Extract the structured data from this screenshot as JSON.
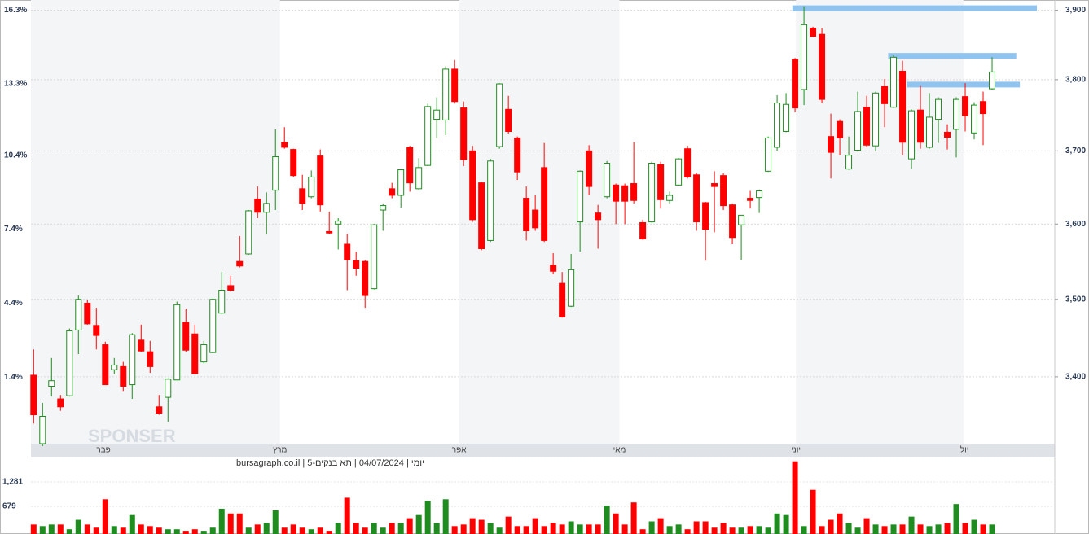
{
  "chart_data": [
    {
      "type": "candlestick",
      "caption": "יומי | 04/07/2024 | תא בנקים-5 | bursagraph.co.il",
      "watermark": "SPONSER",
      "up_color": "#1e8c1e",
      "down_color": "#ff0000",
      "log_scale": true,
      "grid": true,
      "xlim": [
        -0.3,
        114
      ],
      "xticks": [
        {
          "value": 7.8,
          "label": "פבר"
        },
        {
          "value": 27.5,
          "label": "מרץ"
        },
        {
          "value": 47.5,
          "label": "אפר"
        },
        {
          "value": 65.4,
          "label": "מאי"
        },
        {
          "value": 85.1,
          "label": "יוני"
        },
        {
          "value": 103.8,
          "label": "יולי"
        }
      ],
      "ylim": [
        3316,
        3915
      ],
      "yticks": [
        {
          "value": 3400,
          "label": "3,400"
        },
        {
          "value": 3500,
          "label": "3,500"
        },
        {
          "value": 3600,
          "label": "3,600"
        },
        {
          "value": 3700,
          "label": "3,700"
        },
        {
          "value": 3800,
          "label": "3,800"
        },
        {
          "value": 3900,
          "label": "3,900"
        }
      ],
      "y2lim": [
        -1.3,
        16.7
      ],
      "y2ticks": [
        {
          "value": 1.4,
          "label": "1.4%"
        },
        {
          "value": 4.4,
          "label": "4.4%"
        },
        {
          "value": 7.4,
          "label": "7.4%"
        },
        {
          "value": 10.4,
          "label": "10.4%"
        },
        {
          "value": 13.3,
          "label": "13.3%"
        },
        {
          "value": 16.3,
          "label": "16.3%"
        }
      ],
      "levels": [
        {
          "value": 3903,
          "from": 84.7,
          "to": 112
        },
        {
          "value": 3834,
          "from": 95.4,
          "to": 109.7
        },
        {
          "value": 3793,
          "from": 97.5,
          "to": 110.1
        }
      ],
      "level_color": "#90c4f0",
      "open": [
        3402,
        3316,
        3388,
        3372,
        3376,
        3460,
        3495,
        3466,
        3441,
        3409,
        3413,
        3390,
        3447,
        3432,
        3362,
        3374,
        3396,
        3470,
        3455,
        3419,
        3431,
        3482,
        3518,
        3550,
        3560,
        3634,
        3616,
        3646,
        3712,
        3702,
        3648,
        3637,
        3693,
        3590,
        3600,
        3573,
        3551,
        3550,
        3514,
        3619,
        3648,
        3639,
        3705,
        3648,
        3680,
        3744,
        3743,
        3815,
        3760,
        3700,
        3656,
        3578,
        3706,
        3758,
        3718,
        3635,
        3619,
        3677,
        3545,
        3521,
        3491,
        3603,
        3700,
        3615,
        3637,
        3653,
        3652,
        3655,
        3602,
        3603,
        3681,
        3632,
        3653,
        3703,
        3667,
        3629,
        3655,
        3666,
        3626,
        3599,
        3635,
        3636,
        3672,
        3705,
        3727,
        3829,
        3786,
        3874,
        3865,
        3720,
        3741,
        3675,
        3701,
        3761,
        3707,
        3790,
        3761,
        3812,
        3689,
        3757,
        3705,
        3744,
        3726,
        3730,
        3776,
        3725,
        3769,
        3787
      ],
      "high": [
        3435,
        3367,
        3424,
        3377,
        3462,
        3505,
        3499,
        3489,
        3445,
        3424,
        3419,
        3456,
        3467,
        3446,
        3377,
        3398,
        3497,
        3488,
        3467,
        3446,
        3501,
        3536,
        3531,
        3584,
        3619,
        3651,
        3643,
        3730,
        3733,
        3703,
        3667,
        3673,
        3702,
        3617,
        3608,
        3587,
        3563,
        3552,
        3600,
        3628,
        3656,
        3675,
        3707,
        3690,
        3766,
        3775,
        3819,
        3828,
        3769,
        3707,
        3657,
        3689,
        3795,
        3777,
        3720,
        3651,
        3639,
        3711,
        3561,
        3536,
        3560,
        3673,
        3708,
        3626,
        3686,
        3655,
        3655,
        3712,
        3606,
        3685,
        3685,
        3644,
        3690,
        3707,
        3670,
        3630,
        3672,
        3669,
        3628,
        3612,
        3645,
        3647,
        3720,
        3778,
        3781,
        3831,
        3906,
        3876,
        3874,
        3752,
        3744,
        3720,
        3783,
        3777,
        3783,
        3801,
        3835,
        3827,
        3758,
        3791,
        3781,
        3775,
        3737,
        3775,
        3795,
        3768,
        3783,
        3832
      ],
      "low": [
        3341,
        3313,
        3375,
        3357,
        3375,
        3429,
        3467,
        3435,
        3390,
        3403,
        3382,
        3372,
        3432,
        3405,
        3352,
        3343,
        3396,
        3432,
        3403,
        3417,
        3430,
        3481,
        3510,
        3542,
        3559,
        3608,
        3586,
        3619,
        3703,
        3664,
        3619,
        3635,
        3617,
        3586,
        3566,
        3512,
        3531,
        3489,
        3513,
        3591,
        3635,
        3622,
        3644,
        3646,
        3679,
        3718,
        3722,
        3766,
        3679,
        3603,
        3565,
        3576,
        3703,
        3724,
        3660,
        3578,
        3591,
        3576,
        3533,
        3476,
        3490,
        3563,
        3639,
        3567,
        3635,
        3600,
        3600,
        3628,
        3579,
        3602,
        3621,
        3628,
        3652,
        3662,
        3591,
        3551,
        3589,
        3619,
        3573,
        3552,
        3621,
        3615,
        3671,
        3700,
        3726,
        3754,
        3764,
        3861,
        3767,
        3662,
        3694,
        3674,
        3699,
        3705,
        3700,
        3733,
        3760,
        3694,
        3675,
        3703,
        3703,
        3711,
        3702,
        3691,
        3727,
        3716,
        3708,
        3786
      ],
      "close": [
        3352,
        3350,
        3395,
        3362,
        3459,
        3500,
        3468,
        3453,
        3390,
        3415,
        3388,
        3454,
        3433,
        3413,
        3354,
        3397,
        3493,
        3434,
        3404,
        3441,
        3500,
        3512,
        3512,
        3544,
        3618,
        3616,
        3628,
        3692,
        3705,
        3666,
        3628,
        3664,
        3626,
        3588,
        3604,
        3552,
        3541,
        3505,
        3599,
        3625,
        3639,
        3674,
        3656,
        3677,
        3762,
        3757,
        3815,
        3769,
        3688,
        3606,
        3567,
        3686,
        3794,
        3727,
        3671,
        3591,
        3595,
        3578,
        3537,
        3477,
        3539,
        3672,
        3651,
        3606,
        3683,
        3631,
        3631,
        3632,
        3580,
        3683,
        3633,
        3639,
        3689,
        3664,
        3603,
        3593,
        3651,
        3625,
        3582,
        3612,
        3632,
        3645,
        3718,
        3767,
        3765,
        3760,
        3879,
        3862,
        3772,
        3698,
        3718,
        3694,
        3755,
        3708,
        3781,
        3766,
        3832,
        3712,
        3756,
        3712,
        3747,
        3772,
        3719,
        3772,
        3749,
        3764,
        3752,
        3811
      ]
    },
    {
      "type": "bar",
      "ylim": [
        0,
        1820
      ],
      "yticks": [
        {
          "value": 679,
          "label": "679"
        },
        {
          "value": 1281,
          "label": "1,281"
        }
      ],
      "values": [
        233,
        194,
        233,
        233,
        116,
        349,
        233,
        155,
        854,
        194,
        155,
        466,
        233,
        194,
        155,
        116,
        116,
        78,
        116,
        78,
        155,
        621,
        504,
        504,
        155,
        233,
        272,
        582,
        155,
        233,
        155,
        116,
        155,
        78,
        272,
        892,
        272,
        155,
        272,
        155,
        272,
        272,
        388,
        466,
        815,
        272,
        854,
        194,
        233,
        388,
        349,
        272,
        155,
        427,
        194,
        194,
        388,
        194,
        272,
        233,
        310,
        233,
        233,
        233,
        698,
        504,
        233,
        776,
        116,
        310,
        388,
        194,
        233,
        116,
        310,
        310,
        155,
        272,
        155,
        155,
        194,
        194,
        155,
        504,
        466,
        1785,
        194,
        1086,
        194,
        349,
        504,
        272,
        155,
        388,
        233,
        194,
        233,
        233,
        427,
        233,
        194,
        233,
        272,
        737,
        272,
        349,
        233,
        233
      ]
    }
  ]
}
